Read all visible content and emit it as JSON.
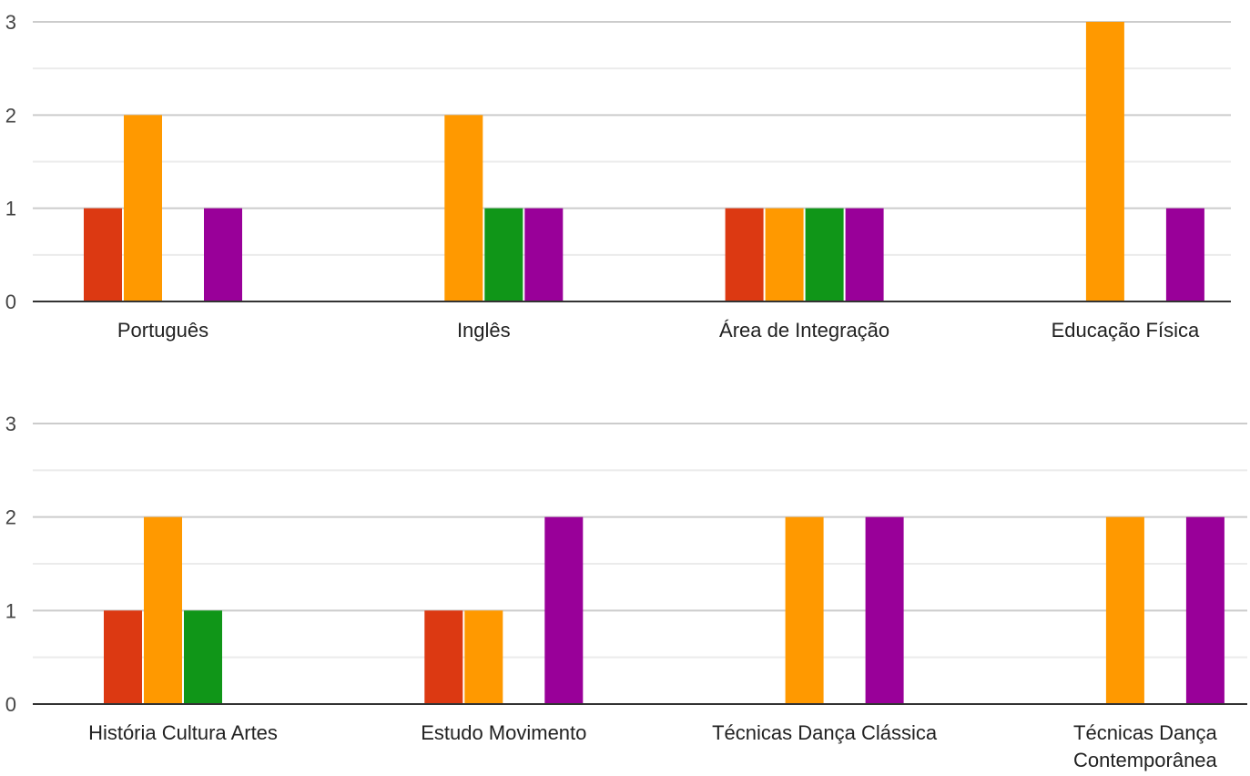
{
  "colors": {
    "series": [
      "#dc3912",
      "#ff9900",
      "#109618",
      "#990099"
    ],
    "major_grid": "#cccccc",
    "minor_grid": "#ebebeb",
    "axis": "#333333"
  },
  "chart_data": [
    {
      "type": "bar",
      "title": "",
      "xlabel": "",
      "ylabel": "",
      "ylim": [
        0,
        3
      ],
      "grid": true,
      "categories": [
        "Português",
        "Inglês",
        "Área de Integração",
        "Educação Física"
      ],
      "series": [
        {
          "values": [
            1,
            0,
            1,
            0
          ]
        },
        {
          "values": [
            2,
            2,
            1,
            3
          ]
        },
        {
          "values": [
            0,
            1,
            1,
            0
          ]
        },
        {
          "values": [
            1,
            1,
            1,
            1
          ]
        }
      ]
    },
    {
      "type": "bar",
      "title": "",
      "xlabel": "",
      "ylabel": "",
      "ylim": [
        0,
        3
      ],
      "grid": true,
      "categories": [
        "História Cultura Artes",
        "Estudo Movimento",
        "Técnicas Dança Clássica",
        "Técnicas Dança Contemporânea"
      ],
      "series": [
        {
          "values": [
            1,
            1,
            0,
            0
          ]
        },
        {
          "values": [
            2,
            1,
            2,
            2
          ]
        },
        {
          "values": [
            1,
            0,
            0,
            0
          ]
        },
        {
          "values": [
            0,
            2,
            2,
            2
          ]
        }
      ]
    }
  ]
}
